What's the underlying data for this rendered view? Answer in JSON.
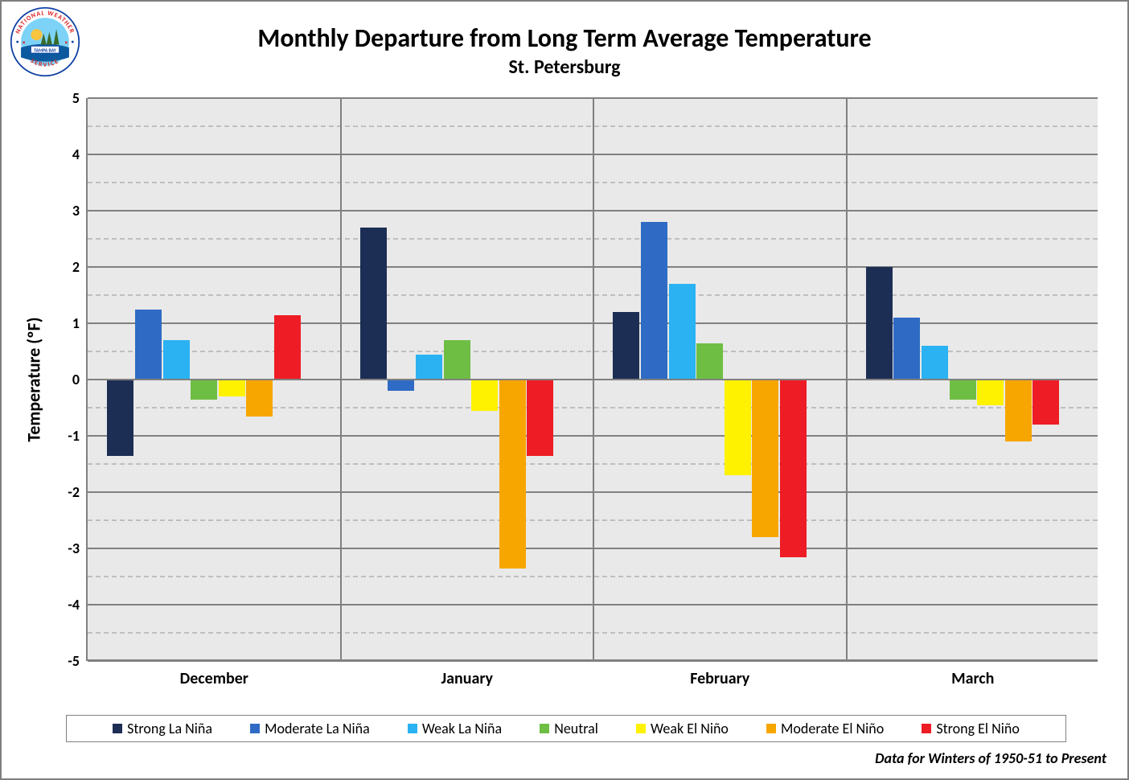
{
  "title": "Monthly Departure from Long Term Average Temperature",
  "subtitle": "St. Petersburg",
  "yaxis_title": "Temperature (ºF)",
  "caption": "Data for Winters of 1950-51 to Present",
  "logo": {
    "text_top": "NATIONAL WEATHER",
    "text_bottom": "SERVICE",
    "banner": "TAMPA BAY"
  },
  "chart": {
    "type": "grouped-bar",
    "background_color": "#e9e9e9",
    "grid_major_color": "#808080",
    "grid_minor_color": "#bfbfbf",
    "ylim": [
      -5,
      5
    ],
    "ytick_major_step": 1,
    "ytick_minor_step": 0.5,
    "yticks": [
      -5,
      -4,
      -3,
      -2,
      -1,
      0,
      1,
      2,
      3,
      4,
      5
    ],
    "categories": [
      "December",
      "January",
      "February",
      "March"
    ],
    "series": [
      {
        "name": "Strong La Niña",
        "color": "#1d2e54"
      },
      {
        "name": "Moderate La Niña",
        "color": "#2f6bc4"
      },
      {
        "name": "Weak La Niña",
        "color": "#2ab2f2"
      },
      {
        "name": "Neutral",
        "color": "#6fbe44"
      },
      {
        "name": "Weak El Niño",
        "color": "#fff200"
      },
      {
        "name": "Moderate El Niño",
        "color": "#f7a600"
      },
      {
        "name": "Strong El Niño",
        "color": "#ee1c25"
      }
    ],
    "values": [
      [
        -1.35,
        1.25,
        0.7,
        -0.35,
        -0.3,
        -0.65,
        1.15
      ],
      [
        2.7,
        -0.2,
        0.45,
        0.7,
        -0.55,
        -3.35,
        -1.35
      ],
      [
        1.2,
        2.8,
        1.7,
        0.65,
        -1.7,
        -2.8,
        -3.15
      ],
      [
        2.0,
        1.1,
        0.6,
        -0.35,
        -0.45,
        -1.1,
        -0.8
      ]
    ],
    "bar_rel_width": 0.105,
    "group_offsets": [
      0.13,
      0.24,
      0.35,
      0.46,
      0.57,
      0.68,
      0.79
    ],
    "title_fontsize": 32,
    "subtitle_fontsize": 24,
    "axis_title_fontsize": 22,
    "tick_fontsize_y": 18,
    "tick_fontsize_x": 20,
    "legend_fontsize": 18,
    "caption_fontsize": 18
  }
}
